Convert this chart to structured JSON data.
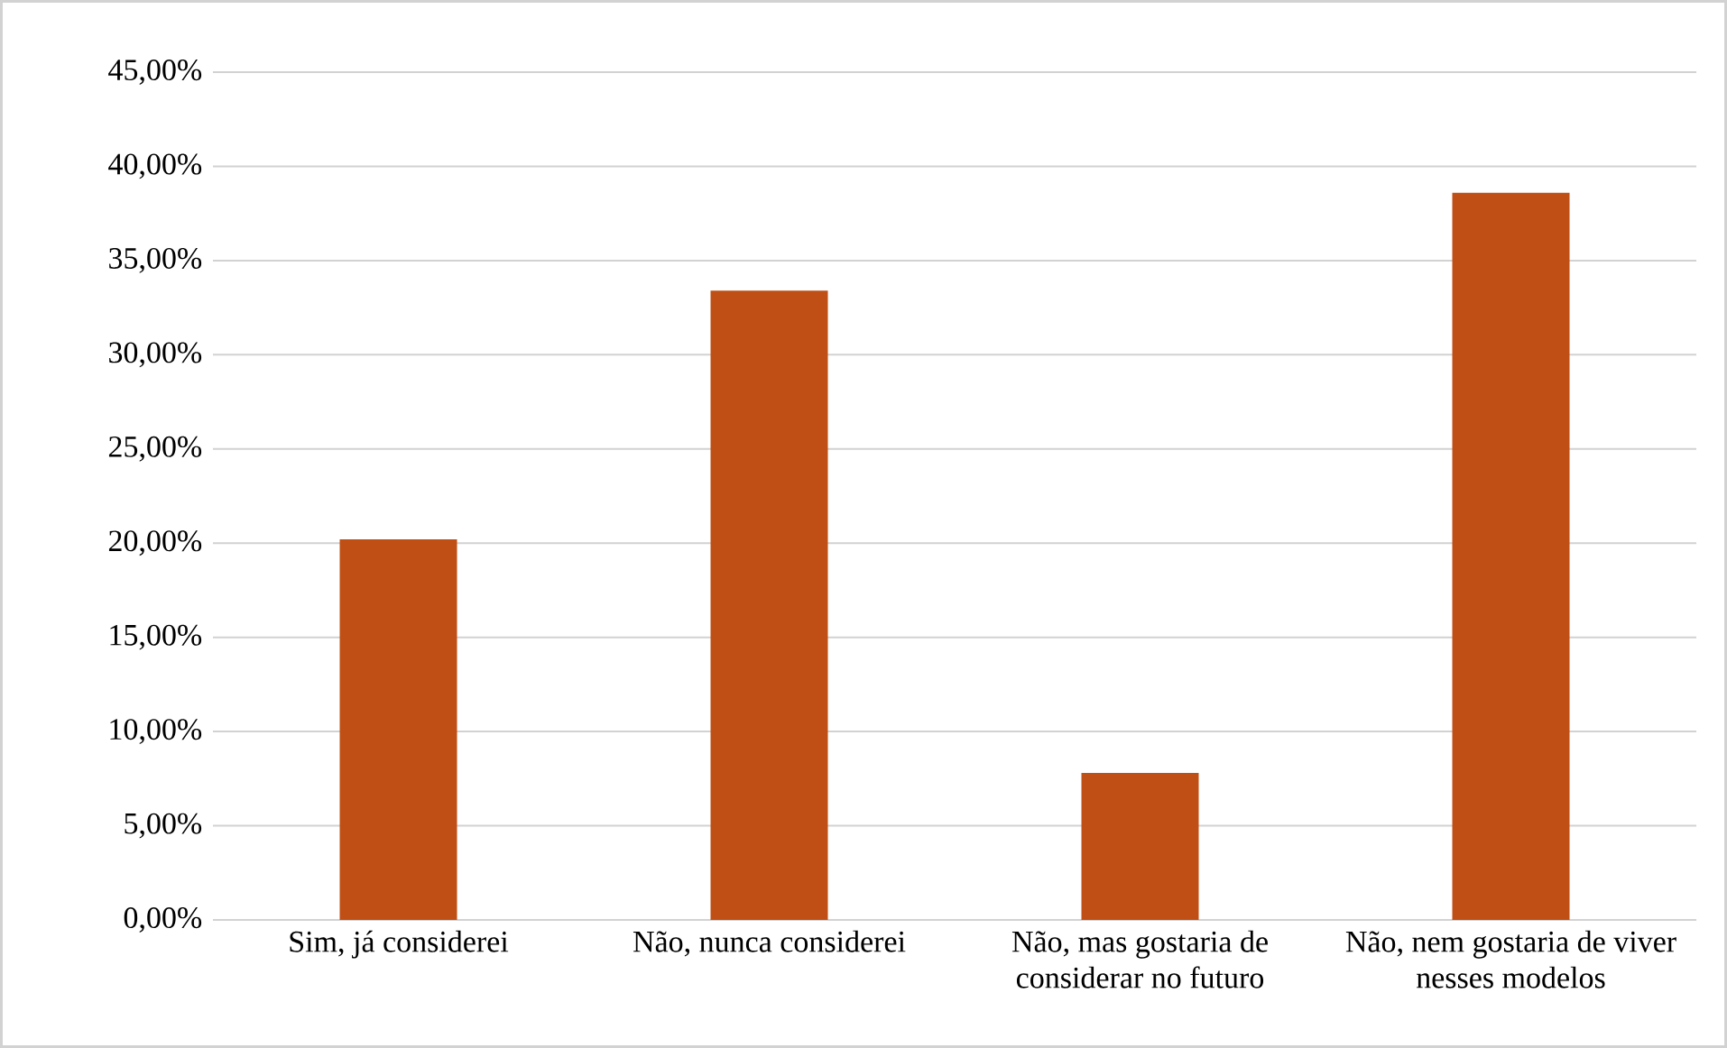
{
  "chart_data": {
    "type": "bar",
    "categories": [
      "Sim, já considerei",
      "Não, nunca considerei",
      "Não, mas gostaria de considerar no futuro",
      "Não, nem gostaria de viver nesses modelos"
    ],
    "values": [
      20.2,
      33.4,
      7.8,
      38.6
    ],
    "color": "#c04f15",
    "ylim": [
      0,
      45
    ],
    "yticks": [
      {
        "value": 0,
        "label": "0,00%"
      },
      {
        "value": 5,
        "label": "5,00%"
      },
      {
        "value": 10,
        "label": "10,00%"
      },
      {
        "value": 15,
        "label": "15,00%"
      },
      {
        "value": 20,
        "label": "20,00%"
      },
      {
        "value": 25,
        "label": "25,00%"
      },
      {
        "value": 30,
        "label": "30,00%"
      },
      {
        "value": 35,
        "label": "35,00%"
      },
      {
        "value": 40,
        "label": "40,00%"
      },
      {
        "value": 45,
        "label": "45,00%"
      }
    ],
    "grid": "y"
  }
}
